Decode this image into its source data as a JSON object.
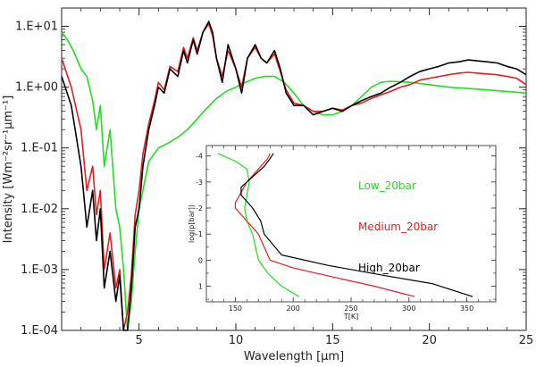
{
  "chart_data": [
    {
      "type": "line",
      "title": "",
      "xlabel": "Wavelength [µm]",
      "ylabel": "Intensity [Wm⁻²sr⁻¹µm⁻¹]",
      "xlim": [
        1,
        25
      ],
      "ylim": [
        0.0001,
        20
      ],
      "yscale": "log",
      "x_ticks": [
        5,
        10,
        15,
        20,
        25
      ],
      "x_tick_labels": [
        "5",
        "10",
        "15",
        "20",
        "25"
      ],
      "y_ticks": [
        0.0001,
        0.001,
        0.01,
        0.1,
        1,
        10
      ],
      "y_tick_labels": [
        "1.E-04",
        "1.E-03",
        "1.E-02",
        "1.E-01",
        "1.E+00",
        "1.E+01"
      ],
      "series": [
        {
          "name": "High_20bar",
          "color": "#000000",
          "x": [
            1.0,
            1.5,
            2.0,
            2.3,
            2.6,
            2.8,
            3.0,
            3.2,
            3.5,
            3.8,
            4.0,
            4.2,
            4.4,
            4.6,
            4.8,
            5.0,
            5.2,
            5.5,
            5.8,
            6.0,
            6.3,
            6.6,
            7.0,
            7.3,
            7.5,
            7.8,
            8.0,
            8.3,
            8.6,
            8.8,
            9.0,
            9.3,
            9.6,
            10.0,
            10.3,
            10.6,
            11.0,
            11.3,
            11.6,
            12.0,
            12.3,
            12.6,
            13.0,
            13.5,
            14.0,
            14.5,
            15.0,
            15.5,
            16.0,
            16.5,
            17.0,
            17.5,
            18.0,
            18.5,
            19.0,
            19.5,
            20.0,
            20.5,
            21.0,
            21.5,
            22.0,
            22.5,
            23.0,
            23.5,
            24.0,
            24.5,
            25.0
          ],
          "y": [
            1.5,
            0.5,
            0.05,
            0.005,
            0.02,
            0.003,
            0.01,
            0.0005,
            0.002,
            0.0003,
            0.0008,
            0.0001,
            0.0001,
            0.0005,
            0.005,
            0.01,
            0.05,
            0.2,
            0.5,
            1.0,
            0.8,
            2.0,
            1.5,
            4.0,
            2.5,
            6.0,
            3.5,
            8.0,
            12.0,
            8.0,
            3.0,
            1.2,
            5.0,
            2.0,
            0.8,
            3.0,
            5.0,
            3.0,
            2.5,
            4.0,
            2.0,
            0.8,
            0.5,
            0.5,
            0.35,
            0.4,
            0.45,
            0.4,
            0.5,
            0.6,
            0.7,
            0.8,
            1.0,
            1.2,
            1.5,
            1.8,
            2.0,
            2.2,
            2.5,
            2.6,
            2.8,
            2.7,
            2.6,
            2.5,
            2.2,
            2.0,
            1.6
          ]
        },
        {
          "name": "Medium_20bar",
          "color": "#e02020",
          "x": [
            1.0,
            1.5,
            2.0,
            2.3,
            2.6,
            2.8,
            3.0,
            3.2,
            3.5,
            3.8,
            4.0,
            4.2,
            4.4,
            4.6,
            4.8,
            5.0,
            5.2,
            5.5,
            5.8,
            6.0,
            6.3,
            6.6,
            7.0,
            7.3,
            7.5,
            7.8,
            8.0,
            8.3,
            8.6,
            8.8,
            9.0,
            9.3,
            9.6,
            10.0,
            10.3,
            10.6,
            11.0,
            11.3,
            11.6,
            12.0,
            12.3,
            12.6,
            13.0,
            13.5,
            14.0,
            14.5,
            15.0,
            15.5,
            16.0,
            16.5,
            17.0,
            17.5,
            18.0,
            18.5,
            19.0,
            19.5,
            20.0,
            20.5,
            21.0,
            21.5,
            22.0,
            22.5,
            23.0,
            23.5,
            24.0,
            24.5,
            25.0
          ],
          "y": [
            3.0,
            1.0,
            0.2,
            0.02,
            0.05,
            0.008,
            0.02,
            0.001,
            0.004,
            0.0005,
            0.001,
            0.0001,
            0.0002,
            0.0008,
            0.008,
            0.02,
            0.08,
            0.25,
            0.6,
            1.2,
            0.9,
            2.2,
            1.8,
            4.5,
            3.0,
            6.5,
            4.0,
            8.0,
            11.0,
            7.0,
            3.0,
            1.5,
            4.0,
            2.0,
            1.0,
            3.0,
            4.5,
            3.0,
            2.5,
            3.5,
            1.8,
            0.9,
            0.55,
            0.5,
            0.4,
            0.4,
            0.45,
            0.42,
            0.5,
            0.55,
            0.65,
            0.75,
            0.85,
            1.0,
            1.1,
            1.3,
            1.4,
            1.5,
            1.6,
            1.7,
            1.75,
            1.7,
            1.65,
            1.6,
            1.5,
            1.4,
            1.1
          ]
        },
        {
          "name": "Low_20bar",
          "color": "#22dd22",
          "x": [
            1.0,
            1.3,
            1.6,
            2.0,
            2.3,
            2.6,
            2.8,
            3.0,
            3.2,
            3.5,
            3.8,
            4.0,
            4.2,
            4.4,
            4.6,
            4.8,
            5.0,
            5.5,
            6.0,
            6.5,
            7.0,
            7.5,
            8.0,
            8.5,
            9.0,
            9.5,
            10.0,
            10.5,
            11.0,
            11.5,
            12.0,
            12.5,
            13.0,
            13.5,
            14.0,
            14.5,
            15.0,
            15.5,
            16.0,
            16.5,
            17.0,
            17.5,
            18.0,
            19.0,
            20.0,
            21.0,
            22.0,
            23.0,
            24.0,
            25.0
          ],
          "y": [
            8.0,
            6.0,
            4.0,
            2.0,
            1.5,
            0.6,
            0.2,
            0.5,
            0.05,
            0.2,
            0.01,
            0.005,
            0.001,
            0.0001,
            0.0003,
            0.002,
            0.01,
            0.06,
            0.1,
            0.12,
            0.15,
            0.2,
            0.3,
            0.45,
            0.65,
            0.85,
            1.0,
            1.2,
            1.4,
            1.5,
            1.5,
            1.2,
            0.8,
            0.5,
            0.4,
            0.35,
            0.35,
            0.4,
            0.5,
            0.7,
            1.0,
            1.2,
            1.25,
            1.2,
            1.1,
            1.0,
            0.95,
            0.9,
            0.85,
            0.8
          ]
        }
      ]
    },
    {
      "type": "line",
      "title": "",
      "xlabel": "T[K]",
      "ylabel": "log(p[bar])",
      "xlim": [
        125,
        375
      ],
      "ylim": [
        1.6,
        -4.4
      ],
      "x_ticks": [
        150,
        200,
        250,
        300,
        350
      ],
      "x_tick_labels": [
        "150",
        "200",
        "250",
        "300",
        "350"
      ],
      "y_ticks": [
        -4,
        -3,
        -2,
        -1,
        0,
        1
      ],
      "y_tick_labels": [
        "-4",
        "-3",
        "-2",
        "-1",
        "0",
        "1"
      ],
      "legend": [
        "Low_20bar",
        "Medium_20bar",
        "High_20bar"
      ],
      "legend_position": "top-right",
      "series": [
        {
          "name": "Low_20bar",
          "color": "#22dd22",
          "x": [
            135,
            150,
            160,
            162,
            160,
            158,
            160,
            165,
            170,
            178,
            190,
            205
          ],
          "y": [
            -4.1,
            -3.8,
            -3.5,
            -3.0,
            -2.5,
            -2.0,
            -1.5,
            -1.0,
            0.0,
            0.5,
            1.0,
            1.4
          ]
        },
        {
          "name": "Medium_20bar",
          "color": "#e02020",
          "x": [
            180,
            178,
            172,
            160,
            150,
            150,
            160,
            170,
            175,
            180,
            200,
            240,
            270,
            305
          ],
          "y": [
            -4.1,
            -3.9,
            -3.6,
            -3.0,
            -2.2,
            -2.0,
            -1.5,
            -1.0,
            -0.5,
            0.0,
            0.3,
            0.7,
            1.0,
            1.4
          ]
        },
        {
          "name": "High_20bar",
          "color": "#000000",
          "x": [
            183,
            180,
            175,
            165,
            155,
            155,
            165,
            172,
            175,
            190,
            230,
            280,
            320,
            355
          ],
          "y": [
            -4.1,
            -3.9,
            -3.6,
            -3.2,
            -2.8,
            -2.5,
            -2.0,
            -1.5,
            -1.0,
            -0.2,
            0.2,
            0.6,
            0.9,
            1.4
          ]
        }
      ]
    }
  ]
}
